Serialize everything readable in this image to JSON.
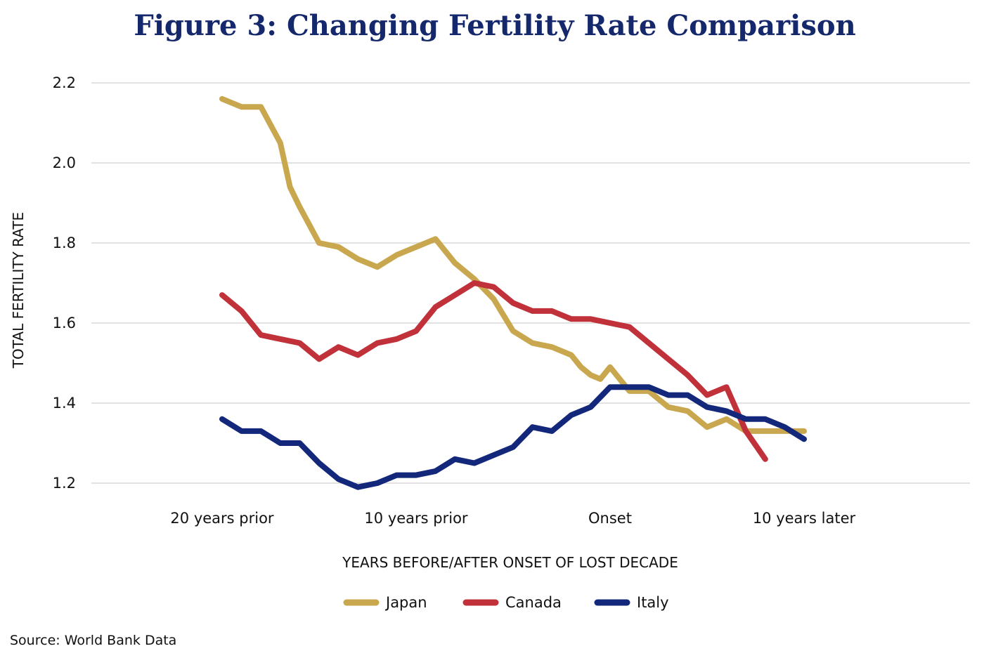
{
  "chart_data": {
    "type": "line",
    "title": "Figure 3: Changing Fertility Rate Comparison",
    "xlabel": "YEARS BEFORE/AFTER ONSET OF LOST DECADE",
    "ylabel": "TOTAL FERTILITY RATE",
    "ylim": [
      1.2,
      2.2
    ],
    "xlim": [
      -20,
      10
    ],
    "yticks": [
      1.2,
      1.4,
      1.6,
      1.8,
      2.0,
      2.2
    ],
    "ytick_labels": [
      "1.2",
      "1.4",
      "1.6",
      "1.8",
      "2.0",
      "2.2"
    ],
    "xticks": [
      -20,
      -10,
      0,
      10
    ],
    "xtick_labels": [
      "20 years prior",
      "10 years prior",
      "Onset",
      "10 years later"
    ],
    "grid": "horizontal",
    "legend_position": "bottom",
    "source": "Source: World Bank Data",
    "series": [
      {
        "name": "Japan",
        "color": "#c9a74e",
        "x": [
          -20,
          -19,
          -18,
          -17,
          -16.5,
          -16,
          -15,
          -14,
          -13,
          -12,
          -11,
          -10,
          -9,
          -8,
          -7,
          -6,
          -5,
          -4,
          -3,
          -2,
          -1.5,
          -1,
          -0.5,
          0,
          1,
          2,
          3,
          4,
          4.5,
          5,
          6,
          7,
          8,
          9,
          10
        ],
        "y": [
          2.16,
          2.14,
          2.14,
          2.05,
          1.94,
          1.89,
          1.8,
          1.79,
          1.76,
          1.74,
          1.77,
          1.79,
          1.81,
          1.75,
          1.71,
          1.66,
          1.58,
          1.55,
          1.54,
          1.52,
          1.49,
          1.47,
          1.46,
          1.49,
          1.43,
          1.43,
          1.39,
          1.38,
          1.36,
          1.34,
          1.36,
          1.33,
          1.33,
          1.33,
          1.33
        ]
      },
      {
        "name": "Canada",
        "color": "#c0313a",
        "x": [
          -20,
          -19,
          -18,
          -17,
          -16,
          -15,
          -14,
          -13,
          -12,
          -11,
          -10,
          -9,
          -8,
          -7,
          -6,
          -5,
          -4,
          -3,
          -2,
          -1,
          0,
          1,
          2,
          3,
          4,
          5,
          6,
          7,
          8
        ],
        "y": [
          1.67,
          1.63,
          1.57,
          1.56,
          1.55,
          1.51,
          1.54,
          1.52,
          1.55,
          1.56,
          1.58,
          1.64,
          1.67,
          1.7,
          1.69,
          1.65,
          1.63,
          1.63,
          1.61,
          1.61,
          1.6,
          1.59,
          1.55,
          1.51,
          1.47,
          1.42,
          1.44,
          1.33,
          1.26
        ]
      },
      {
        "name": "Italy",
        "color": "#13287a",
        "x": [
          -20,
          -19,
          -18,
          -17,
          -16,
          -15,
          -14,
          -13,
          -12,
          -11,
          -10,
          -9,
          -8,
          -7,
          -6,
          -5,
          -4,
          -3,
          -2,
          -1,
          0,
          1,
          2,
          3,
          4,
          5,
          6,
          7,
          8,
          9,
          10
        ],
        "y": [
          1.36,
          1.33,
          1.33,
          1.3,
          1.3,
          1.25,
          1.21,
          1.19,
          1.2,
          1.22,
          1.22,
          1.23,
          1.26,
          1.25,
          1.27,
          1.29,
          1.34,
          1.33,
          1.37,
          1.39,
          1.44,
          1.44,
          1.44,
          1.42,
          1.42,
          1.39,
          1.38,
          1.36,
          1.36,
          1.34,
          1.31
        ]
      }
    ]
  }
}
